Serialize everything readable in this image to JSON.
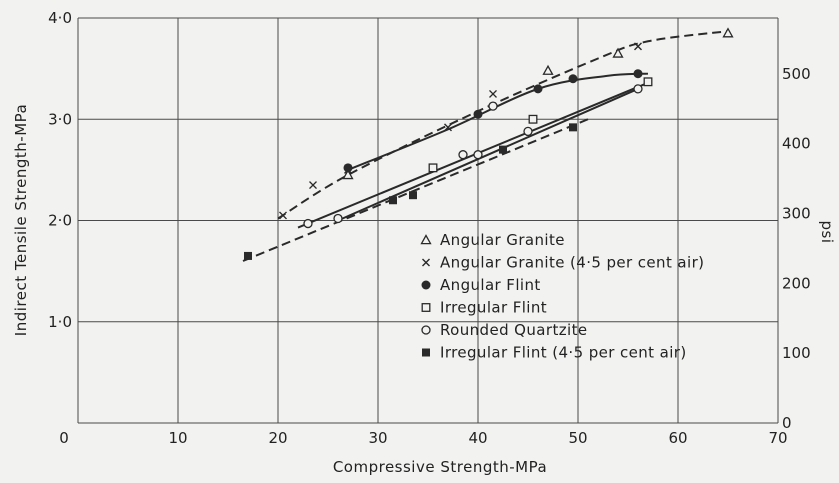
{
  "chart_data": {
    "type": "scatter",
    "xlabel": "Compressive Strength-MPa",
    "ylabel": "Indirect Tensile Strength-MPa",
    "y2label": "psi",
    "xlim": [
      0,
      70
    ],
    "ylim": [
      0,
      4.0
    ],
    "y2lim": [
      0,
      580
    ],
    "grid": true,
    "legend_placement": "center-right",
    "x_ticks": [
      "0",
      "10",
      "20",
      "30",
      "40",
      "50",
      "60",
      "70"
    ],
    "x_tick_values": [
      0,
      10,
      20,
      30,
      40,
      50,
      60,
      70
    ],
    "y_ticks": [
      "0",
      "1·0",
      "2·0",
      "3·0",
      "4·0"
    ],
    "y_tick_values": [
      0,
      1.0,
      2.0,
      3.0,
      4.0
    ],
    "y2_ticks": [
      "0",
      "100",
      "200",
      "300",
      "400",
      "500"
    ],
    "y2_tick_values": [
      0,
      100,
      200,
      300,
      400,
      500
    ],
    "series": [
      {
        "name": "Angular Granite",
        "marker": "triangle-open",
        "x": [
          27,
          47,
          54,
          65
        ],
        "y": [
          2.45,
          3.48,
          3.65,
          3.85
        ]
      },
      {
        "name": "Angular Granite (4·5 per cent air)",
        "marker": "cross",
        "x": [
          20.5,
          23.5,
          27,
          37,
          41.5,
          56
        ],
        "y": [
          2.05,
          2.35,
          2.5,
          2.92,
          3.25,
          3.72
        ]
      },
      {
        "name": "Angular Flint",
        "marker": "circle-filled",
        "x": [
          27,
          40,
          46,
          49.5,
          56
        ],
        "y": [
          2.52,
          3.05,
          3.3,
          3.4,
          3.45
        ]
      },
      {
        "name": "Irregular Flint",
        "marker": "square-open",
        "x": [
          35.5,
          45.5,
          57
        ],
        "y": [
          2.52,
          3.0,
          3.37
        ]
      },
      {
        "name": "Rounded Quartzite",
        "marker": "circle-open",
        "x": [
          23,
          26,
          38.5,
          40,
          41.5,
          45,
          56
        ],
        "y": [
          1.97,
          2.02,
          2.65,
          2.65,
          3.13,
          2.88,
          3.3
        ]
      },
      {
        "name": "Irregular Flint (4·5 per cent air)",
        "marker": "square-filled",
        "x": [
          17,
          31.5,
          33.5,
          42.5,
          49.5
        ],
        "y": [
          1.65,
          2.2,
          2.25,
          2.7,
          2.92
        ]
      }
    ],
    "fit_lines": [
      {
        "style": "solid",
        "x": [
          22,
          57
        ],
        "y": [
          1.93,
          3.36
        ]
      },
      {
        "style": "solid",
        "x": [
          26,
          56
        ],
        "y": [
          2.0,
          3.3
        ]
      },
      {
        "style": "dashed",
        "x": [
          16.5,
          51
        ],
        "y": [
          1.6,
          3.0
        ]
      },
      {
        "style": "solid",
        "x": [
          27,
          37,
          46,
          53,
          57
        ],
        "y": [
          2.5,
          2.9,
          3.3,
          3.43,
          3.45
        ]
      },
      {
        "style": "dashed",
        "x": [
          20,
          27,
          40,
          52,
          57,
          65
        ],
        "y": [
          2.02,
          2.45,
          3.08,
          3.6,
          3.77,
          3.87
        ]
      }
    ]
  }
}
